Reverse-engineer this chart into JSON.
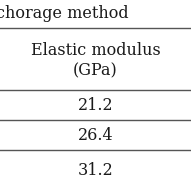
{
  "header_top": "chorage method",
  "col_header_line1": "Elastic modulus",
  "col_header_line2": "(GPa)",
  "rows": [
    "21.2",
    "26.4",
    "31.2"
  ],
  "bg_color": "#ffffff",
  "text_color": "#1a1a1a",
  "font_size": 11.5,
  "line_color": "#555555",
  "line_lw": 1.0,
  "fig_width": 1.91,
  "fig_height": 1.91,
  "dpi": 100
}
